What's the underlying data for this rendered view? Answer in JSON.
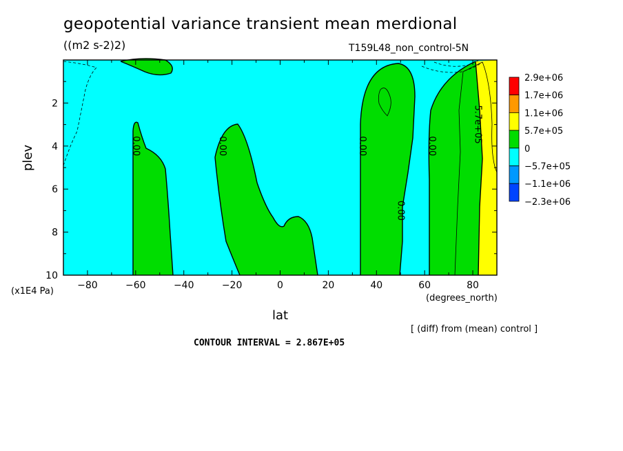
{
  "chart_data": {
    "type": "heatmap",
    "title": "geopotential variance transient mean merdional",
    "units": "((m2 s-2)2)",
    "run_label": "T159L48_non_control-5N",
    "xlabel": "lat",
    "xunit": "(degrees_north)",
    "ylabel": "plev",
    "yunit": "(x1E4 Pa)",
    "xlim": [
      -90,
      90
    ],
    "ylim": [
      0,
      10
    ],
    "y_inverted": true,
    "x_ticks": [
      -80,
      -60,
      -40,
      -20,
      0,
      20,
      40,
      60,
      80
    ],
    "y_ticks": [
      2,
      4,
      6,
      8,
      10
    ],
    "legend": {
      "labels": [
        "2.9e+06",
        "1.7e+06",
        "1.1e+06",
        "5.7e+05",
        "0",
        "−5.7e+05",
        "−1.1e+06",
        "−2.3e+06"
      ],
      "colors": [
        "#ff0000",
        "#ff9900",
        "#ffff00",
        "#00dd00",
        "#00ffff",
        "#0099ff",
        "#0044ff"
      ]
    },
    "contour_labels": [
      {
        "text": "0.00",
        "lat": -60,
        "plev": 4.0
      },
      {
        "text": "0.00",
        "lat": -24,
        "plev": 4.0
      },
      {
        "text": "0.00",
        "lat": 34,
        "plev": 4.0
      },
      {
        "text": "0.00",
        "lat": 63,
        "plev": 4.0
      },
      {
        "text": "0.00",
        "lat": 50,
        "plev": 7.0
      },
      {
        "text": "5.7e+05",
        "lat": 82,
        "plev": 3.0
      }
    ],
    "regions": [
      {
        "name": "negative-background",
        "level": "negative",
        "color": "#00ffff"
      },
      {
        "name": "positive-sh-60",
        "level": "positive",
        "color": "#00dd00"
      },
      {
        "name": "positive-sh-20",
        "level": "positive",
        "color": "#00dd00"
      },
      {
        "name": "positive-nh-40",
        "level": "positive",
        "color": "#00dd00"
      },
      {
        "name": "positive-nh-70",
        "level": "positive",
        "color": "#00dd00"
      },
      {
        "name": "strong-positive-polar",
        "level": "strong-positive",
        "color": "#ffff00"
      },
      {
        "name": "positive-top-sh",
        "level": "positive",
        "color": "#00dd00"
      }
    ],
    "contour_interval_text": "CONTOUR INTERVAL = 2.867E+05",
    "comparison_text": "[ (diff) from (mean) control ]"
  }
}
